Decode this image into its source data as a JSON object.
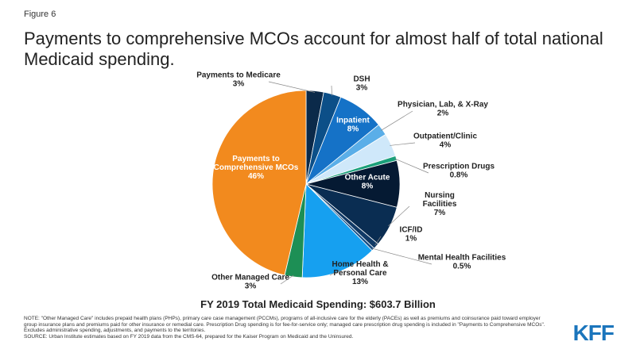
{
  "figure_label": "Figure 6",
  "title": "Payments to comprehensive MCOs account for almost half of total national Medicaid spending.",
  "total_label": "FY 2019 Total Medicaid Spending: $603.7 Billion",
  "notes": {
    "note": "NOTE: \"Other Managed Care\" includes prepaid health plans (PHPs), primary care case management (PCCMs), programs of all-inclusive care for the elderly (PACEs) as well as premiums and coinsurance paid toward employer group insurance plans and premiums paid for other insurance or remedial care. Prescription Drug spending is for fee-for-service only; managed care prescription drug spending is included in \"Payments to Comprehensive MCOs\". Excludes administrative spending, adjustments, and payments to the territories.",
    "source": "SOURCE: Urban Institute estimates based on FY 2019 data from the CMS-64, prepared for the Kaiser Program on Medicaid and the Uninsured."
  },
  "logo_text": "KFF",
  "chart_data": {
    "type": "pie",
    "title": "Payments to comprehensive MCOs account for almost half of total national Medicaid spending.",
    "start": "top, clockwise",
    "slices": [
      {
        "name": "Payments to Medicare",
        "value": 3,
        "label": "3%",
        "color": "#0b2a4a"
      },
      {
        "name": "DSH",
        "value": 3,
        "label": "3%",
        "color": "#0c4f88"
      },
      {
        "name": "Inpatient",
        "value": 8,
        "label": "8%",
        "color": "#1572c7"
      },
      {
        "name": "Physician, Lab, & X-Ray",
        "value": 2,
        "label": "2%",
        "color": "#5aaee8"
      },
      {
        "name": "Outpatient/Clinic",
        "value": 4,
        "label": "4%",
        "color": "#cfe8fa"
      },
      {
        "name": "Prescription Drugs",
        "value": 0.8,
        "label": "0.8%",
        "color": "#1aa07a"
      },
      {
        "name": "Other Acute",
        "value": 8,
        "label": "8%",
        "color": "#051a33"
      },
      {
        "name": "Nursing Facilities",
        "value": 7,
        "label": "7%",
        "color": "#0a2d52"
      },
      {
        "name": "ICF/ID",
        "value": 1,
        "label": "1%",
        "color": "#113a66"
      },
      {
        "name": "Mental Health Facilities",
        "value": 0.5,
        "label": "0.5%",
        "color": "#1b5086"
      },
      {
        "name": "Home Health & Personal Care",
        "value": 13,
        "label": "13%",
        "color": "#16a0f0"
      },
      {
        "name": "Other Managed Care",
        "value": 3,
        "label": "3%",
        "color": "#1d8f55"
      },
      {
        "name": "Payments to Comprehensive MCOs",
        "value": 46,
        "label": "46%",
        "color": "#f28a1e"
      }
    ],
    "label_lines": {
      "Payments to Medicare": [
        "Payments to Medicare"
      ],
      "DSH": [
        "DSH"
      ],
      "Inpatient": [
        "Inpatient"
      ],
      "Physician, Lab, & X-Ray": [
        "Physician, Lab, & X-Ray"
      ],
      "Outpatient/Clinic": [
        "Outpatient/Clinic"
      ],
      "Prescription Drugs": [
        "Prescription Drugs"
      ],
      "Other Acute": [
        "Other Acute"
      ],
      "Nursing Facilities": [
        "Nursing",
        "Facilities"
      ],
      "ICF/ID": [
        "ICF/ID"
      ],
      "Mental Health Facilities": [
        "Mental Health Facilities"
      ],
      "Home Health & Personal Care": [
        "Home Health &",
        "Personal Care"
      ],
      "Other Managed Care": [
        "Other Managed Care"
      ],
      "Payments to Comprehensive MCOs": [
        "Payments to",
        "Comprehensive MCOs"
      ]
    }
  }
}
